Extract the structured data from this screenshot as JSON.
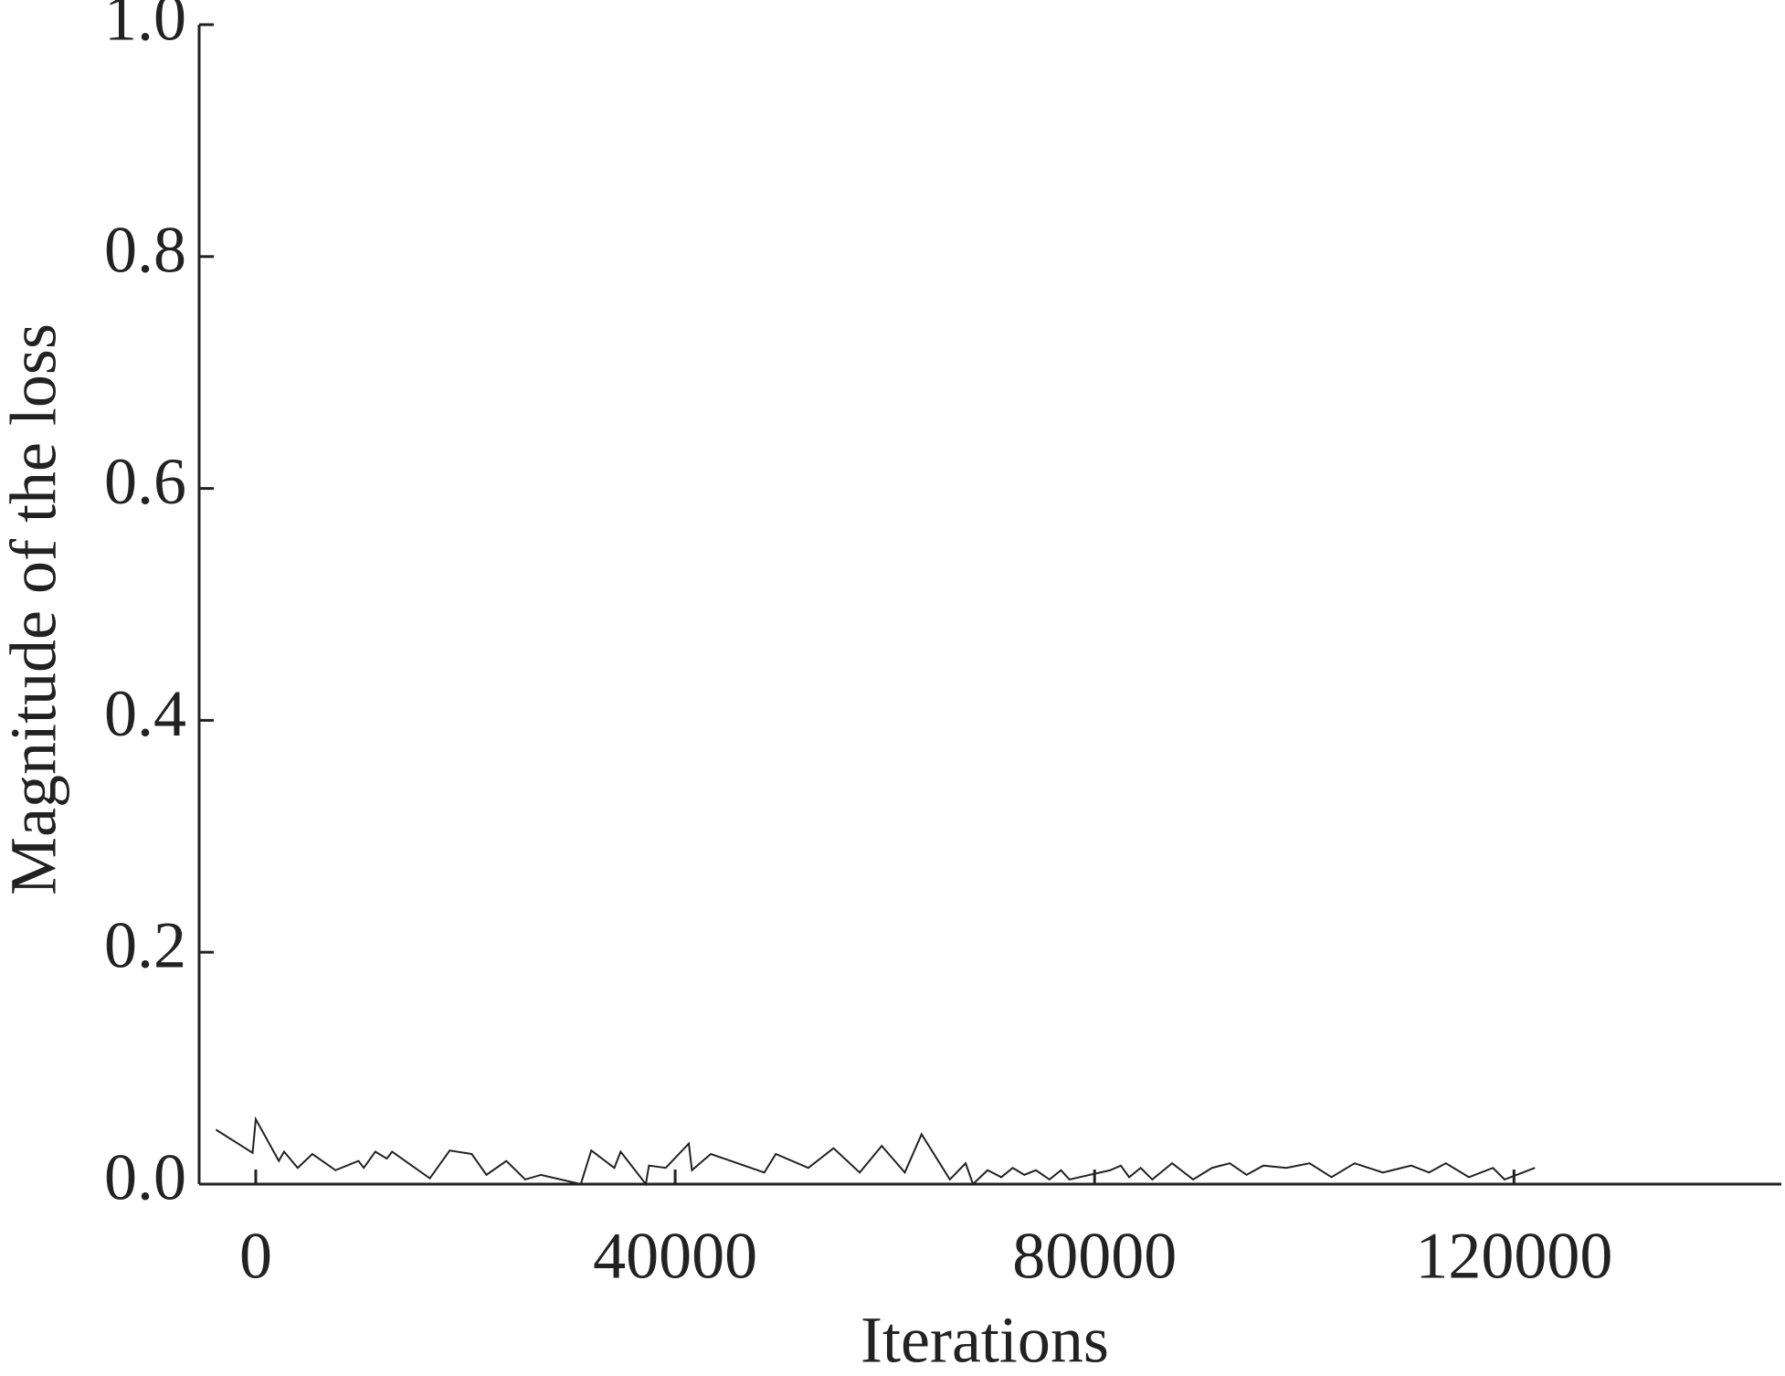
{
  "chart_data": {
    "type": "line",
    "x_label": "Iterations",
    "y_label": "Magnitude of the loss",
    "x": [
      -3800,
      -300,
      0,
      2200,
      2700,
      4000,
      5400,
      7600,
      9800,
      10300,
      11400,
      12500,
      13000,
      16600,
      18500,
      20600,
      22000,
      23900,
      25700,
      27200,
      31000,
      32000,
      34200,
      34800,
      37200,
      37500,
      39100,
      41300,
      41600,
      43400,
      48500,
      49600,
      52700,
      55100,
      57600,
      59700,
      61900,
      63500,
      66200,
      67700,
      68400,
      69800,
      71100,
      72200,
      73300,
      74400,
      75700,
      76800,
      77600,
      81500,
      82500,
      83300,
      84400,
      85500,
      87400,
      89400,
      91200,
      92900,
      94500,
      96100,
      98300,
      100500,
      102600,
      104800,
      107500,
      110200,
      111900,
      113500,
      115700,
      118000,
      119100,
      122000
    ],
    "series": [
      {
        "name": null,
        "color": "#222222",
        "values": [
          0.047,
          0.027,
          0.056,
          0.02,
          0.028,
          0.014,
          0.026,
          0.012,
          0.02,
          0.014,
          0.028,
          0.022,
          0.028,
          0.005,
          0.029,
          0.026,
          0.008,
          0.02,
          0.004,
          0.008,
          0.0,
          0.029,
          0.014,
          0.028,
          0.0,
          0.016,
          0.014,
          0.035,
          0.012,
          0.026,
          0.01,
          0.026,
          0.014,
          0.031,
          0.01,
          0.033,
          0.01,
          0.043,
          0.004,
          0.018,
          0.0,
          0.012,
          0.006,
          0.014,
          0.008,
          0.012,
          0.004,
          0.012,
          0.004,
          0.012,
          0.016,
          0.006,
          0.014,
          0.004,
          0.018,
          0.004,
          0.014,
          0.018,
          0.008,
          0.016,
          0.014,
          0.018,
          0.006,
          0.018,
          0.01,
          0.016,
          0.01,
          0.018,
          0.006,
          0.014,
          0.004,
          0.014
        ]
      }
    ],
    "xlim": [
      -5400,
      145500
    ],
    "ylim": [
      0,
      1.0
    ],
    "xticks": [
      0,
      40000,
      80000,
      120000
    ],
    "yticks": [
      {
        "value": 0,
        "label": "0.0"
      },
      0.2,
      0.4,
      0.6,
      0.8,
      {
        "value": 1,
        "label": "1.0"
      }
    ]
  }
}
